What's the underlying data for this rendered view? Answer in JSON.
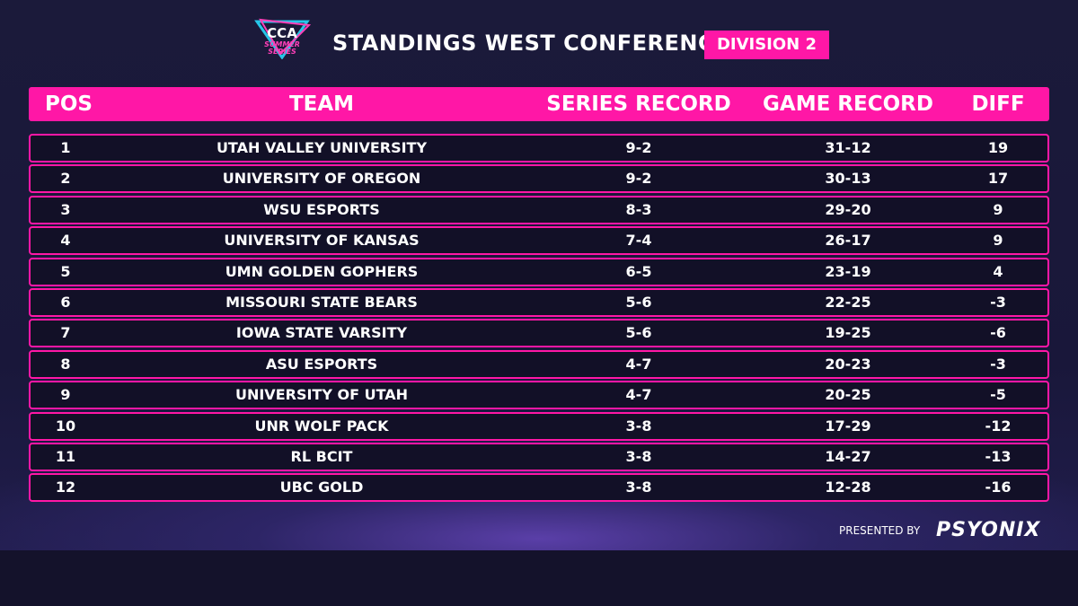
{
  "header": {
    "logo": [
      "CCA",
      "SUMMER",
      "SERIES"
    ],
    "title": "STANDINGS WEST CONFERENCE",
    "badge": "DIVISION 2"
  },
  "table": {
    "columns": [
      "POS",
      "TEAM",
      "SERIES RECORD",
      "GAME RECORD",
      "DIFF"
    ],
    "rows": [
      [
        1,
        "UTAH VALLEY UNIVERSITY",
        "9-2",
        "31-12",
        19
      ],
      [
        2,
        "UNIVERSITY OF OREGON",
        "9-2",
        "30-13",
        17
      ],
      [
        3,
        "WSU ESPORTS",
        "8-3",
        "29-20",
        9
      ],
      [
        4,
        "UNIVERSITY OF KANSAS",
        "7-4",
        "26-17",
        9
      ],
      [
        5,
        "UMN GOLDEN GOPHERS",
        "6-5",
        "23-19",
        4
      ],
      [
        6,
        "MISSOURI STATE BEARS",
        "5-6",
        "22-25",
        -3
      ],
      [
        7,
        "IOWA STATE VARSITY",
        "5-6",
        "19-25",
        -6
      ],
      [
        8,
        "ASU ESPORTS",
        "4-7",
        "20-23",
        -3
      ],
      [
        9,
        "UNIVERSITY OF UTAH",
        "4-7",
        "20-25",
        -5
      ],
      [
        10,
        "UNR WOLF PACK",
        "3-8",
        "17-29",
        -12
      ],
      [
        11,
        "RL BCIT",
        "3-8",
        "14-27",
        -13
      ],
      [
        12,
        "UBC GOLD",
        "3-8",
        "12-28",
        -16
      ]
    ]
  },
  "footer": {
    "presented": "PRESENTED BY",
    "sponsor": "PSYONIX"
  }
}
